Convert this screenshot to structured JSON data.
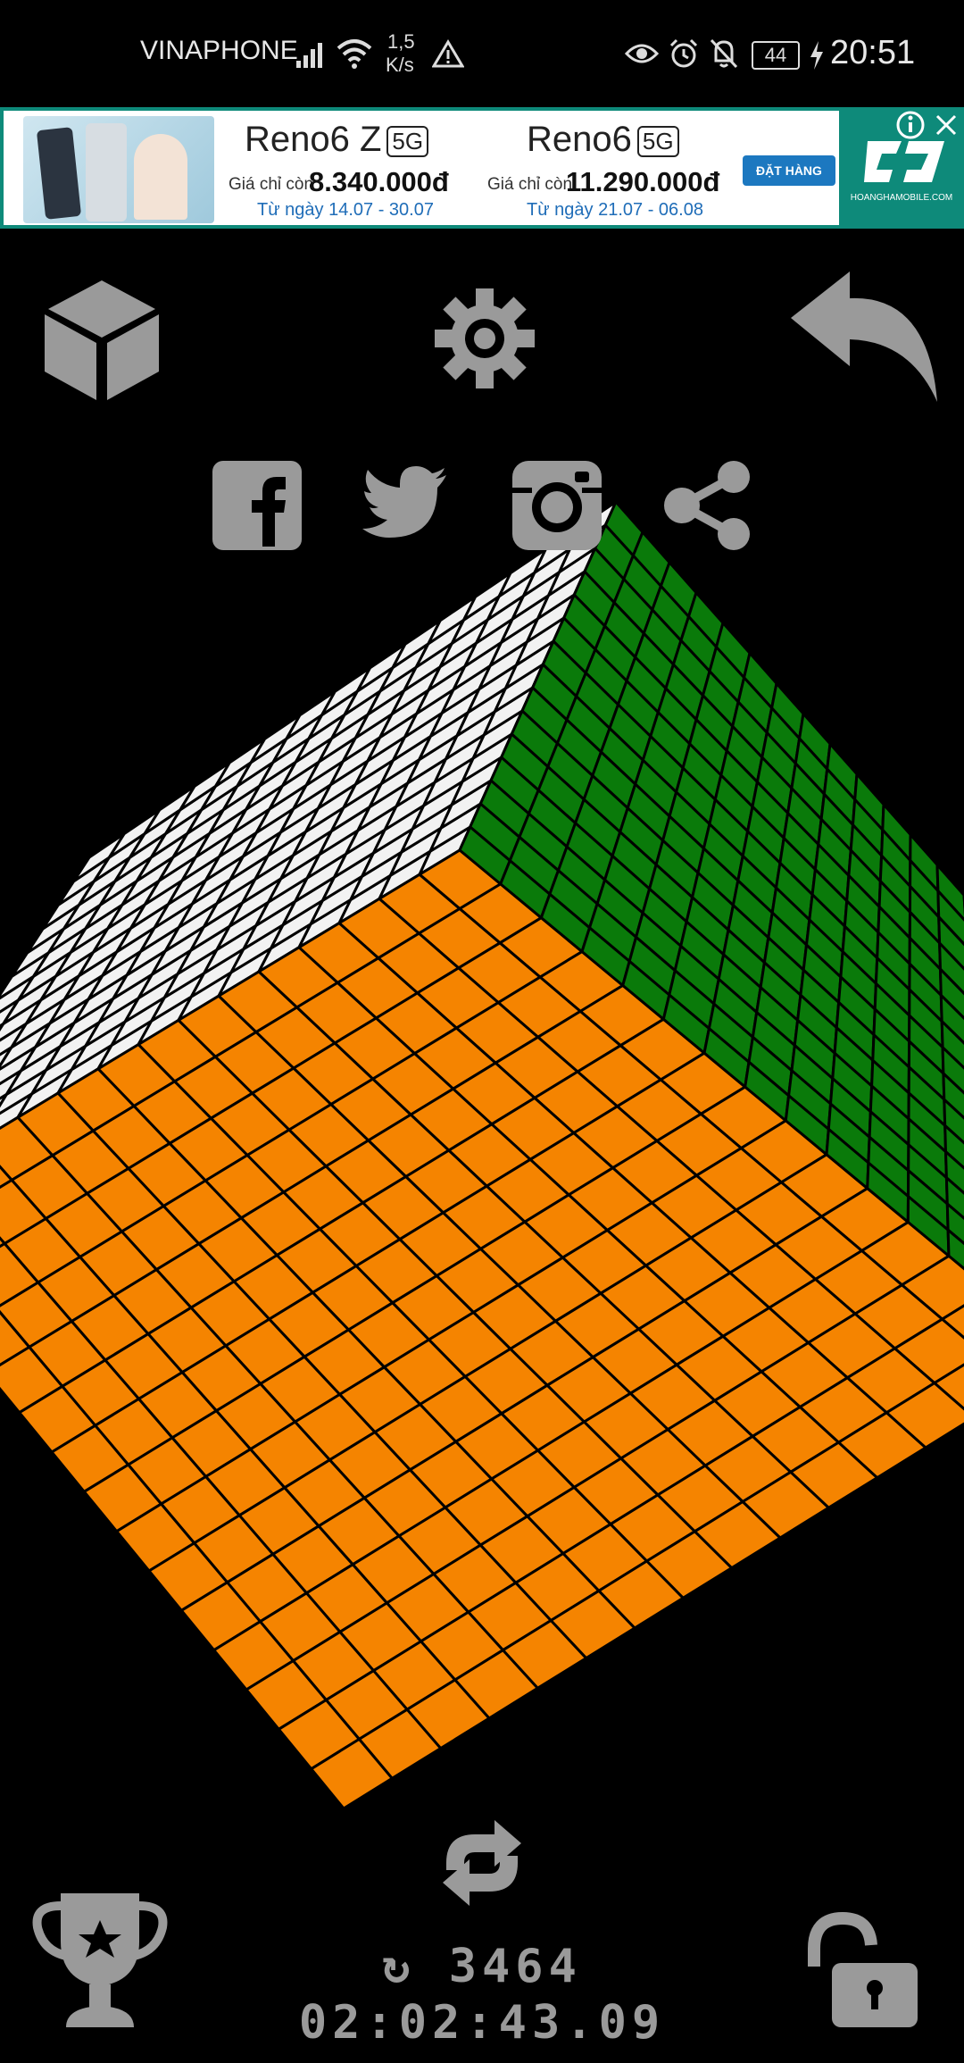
{
  "status_bar": {
    "carrier": "VINAPHONE",
    "net_speed_value": "1,5",
    "net_speed_unit": "K/s",
    "battery": "44",
    "time": "20:51"
  },
  "ad": {
    "product1": {
      "name": "Reno6 Z",
      "badge": "5G",
      "price_label": "Giá chỉ còn",
      "price": "8.340.000đ",
      "dates": "Từ ngày 14.07 - 30.07"
    },
    "product2": {
      "name": "Reno6",
      "badge": "5G",
      "price_label": "Giá chỉ còn",
      "price": "11.290.000đ",
      "dates": "Từ ngày 21.07 - 06.08"
    },
    "cta": "ĐẶT HÀNG",
    "site": "HOANGHAMOBILE.COM",
    "icons": [
      "info-icon",
      "close-icon",
      "brand-logo"
    ]
  },
  "toolbar": {
    "icons": [
      "cube-icon",
      "gear-icon",
      "undo-icon"
    ]
  },
  "social": {
    "icons": [
      "facebook-icon",
      "twitter-icon",
      "instagram-icon",
      "share-icon"
    ]
  },
  "cube": {
    "size": 15,
    "colors": {
      "top": "#f2f2f2",
      "right": "#0a7a0a",
      "front": "#f58400"
    }
  },
  "footer": {
    "move_symbol": "↻",
    "moves": "3464",
    "timer": "02:02:43.09",
    "icons": [
      "trophy-icon",
      "scramble-icon",
      "unlock-icon"
    ]
  }
}
